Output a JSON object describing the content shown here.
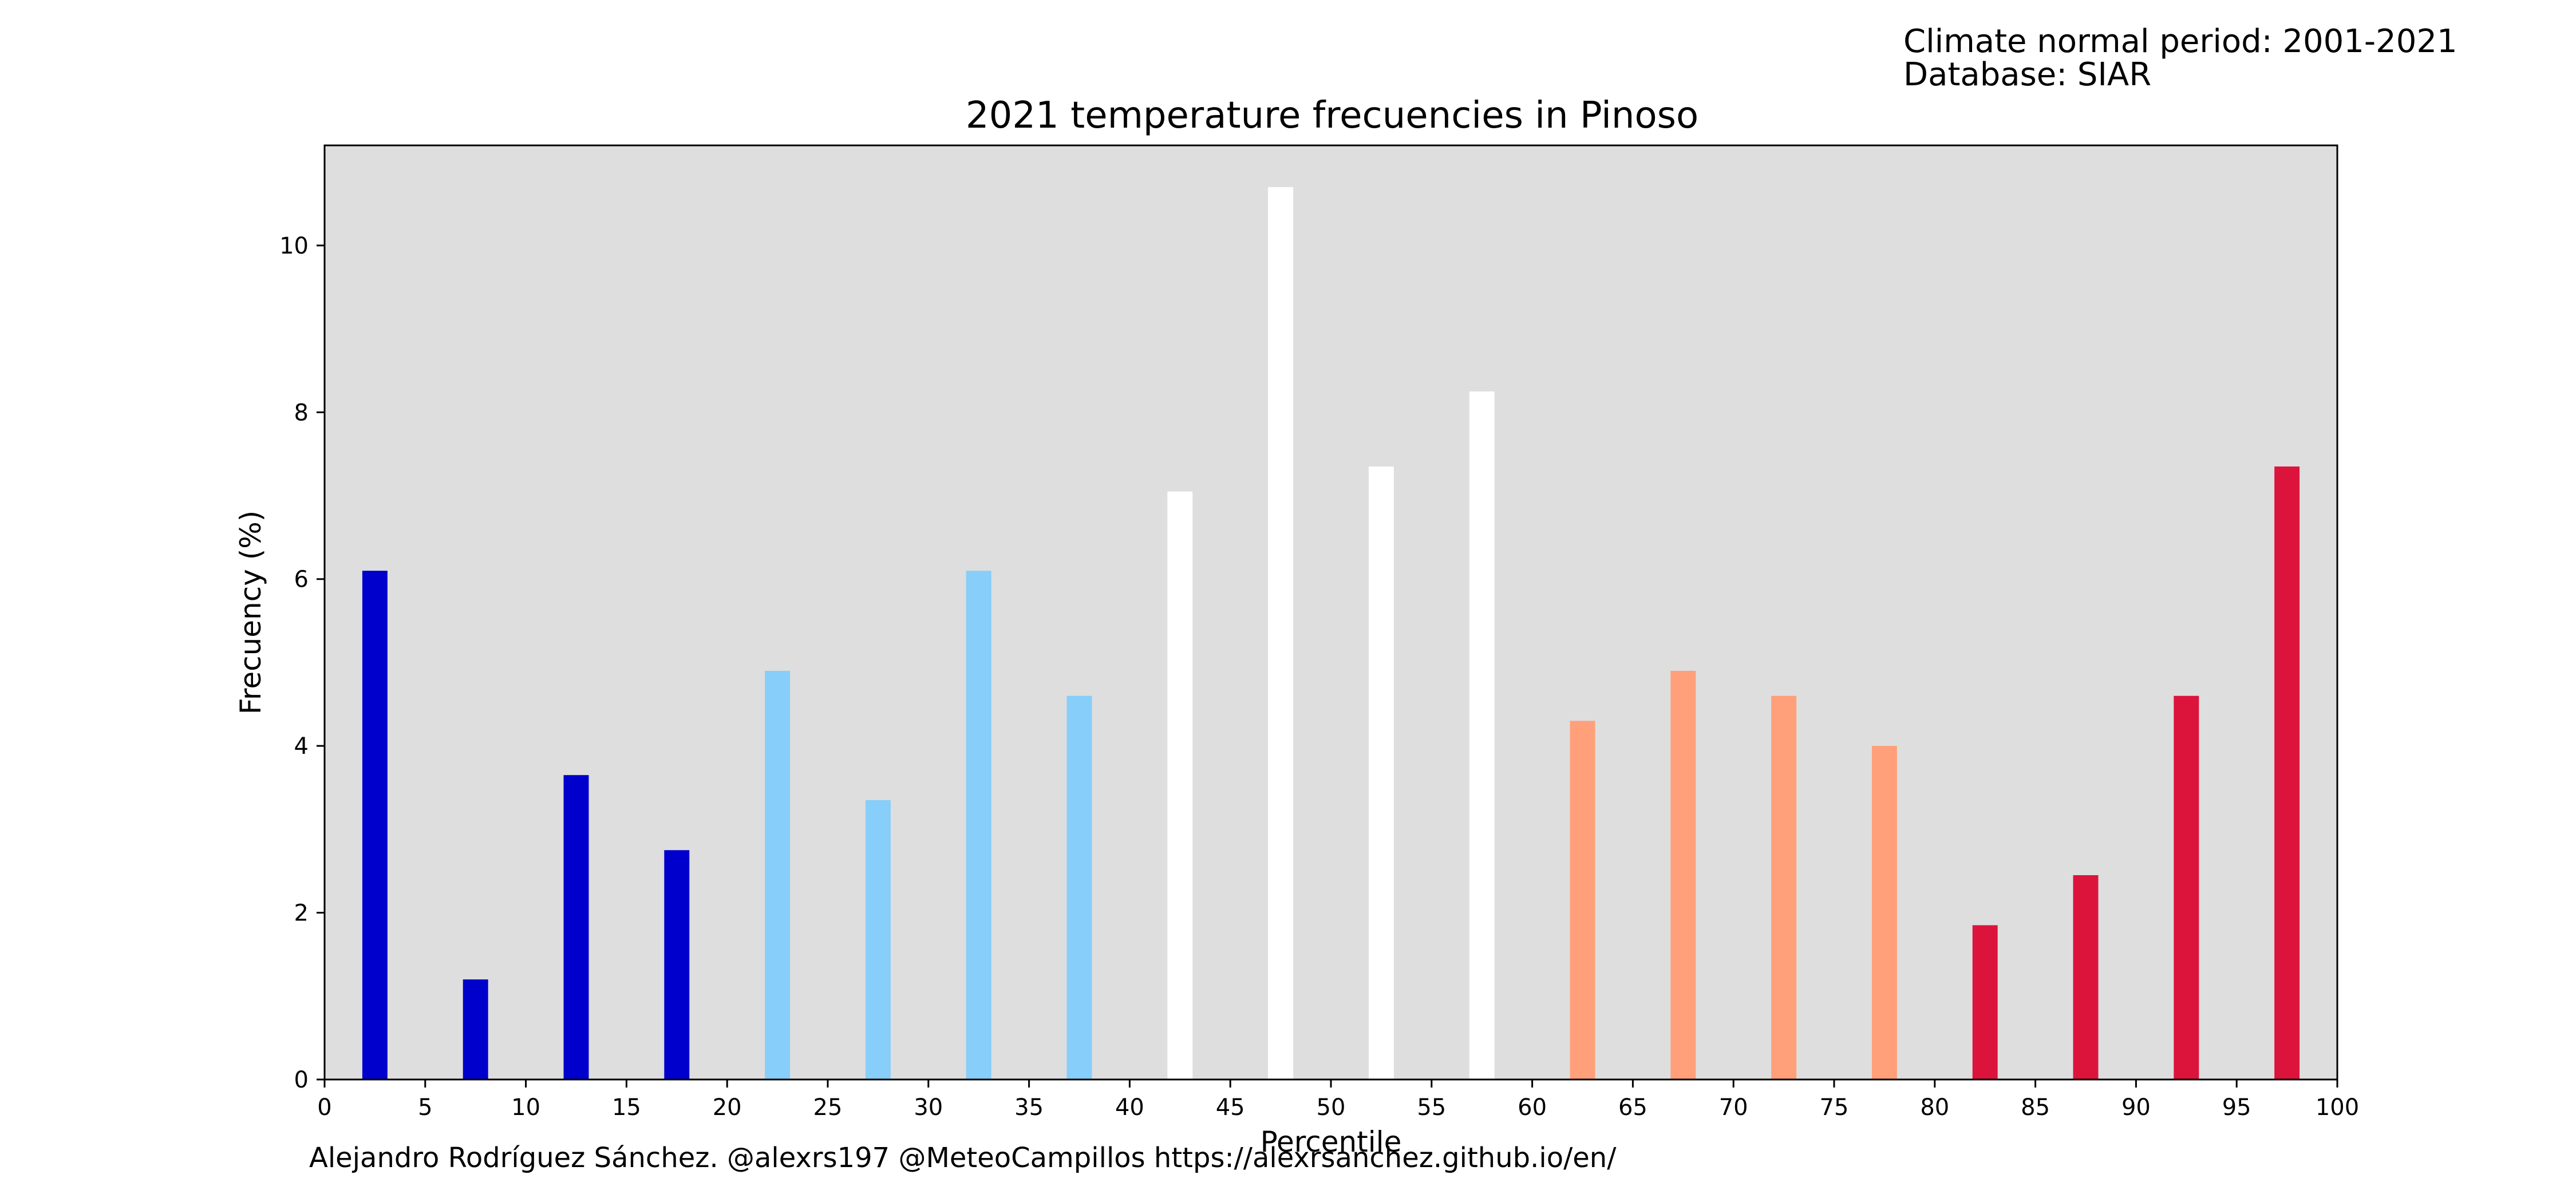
{
  "header": {
    "period_line": "Climate normal period: 2001-2021",
    "database_line": "Database: SIAR"
  },
  "footer": {
    "credit": "Alejandro Rodríguez Sánchez. @alexrs197 @MeteoCampillos   https://alexrsanchez.github.io/en/"
  },
  "chart_data": {
    "type": "bar",
    "title": "2021 temperature frecuencies in Pinoso",
    "xlabel": "Percentile",
    "ylabel": "Frecuency (%)",
    "xlim": [
      0,
      100
    ],
    "ylim": [
      0,
      11.2
    ],
    "x_ticks": [
      0,
      5,
      10,
      15,
      20,
      25,
      30,
      35,
      40,
      45,
      50,
      55,
      60,
      65,
      70,
      75,
      80,
      85,
      90,
      95,
      100
    ],
    "y_ticks": [
      0,
      2,
      4,
      6,
      8,
      10
    ],
    "grid": false,
    "plot_background": "#dedede",
    "bar_width": 1.25,
    "x": [
      2.5,
      7.5,
      12.5,
      17.5,
      22.5,
      27.5,
      32.5,
      37.5,
      42.5,
      47.5,
      52.5,
      57.5,
      62.5,
      67.5,
      72.5,
      77.5,
      82.5,
      87.5,
      92.5,
      97.5
    ],
    "values": [
      6.1,
      1.2,
      3.65,
      2.75,
      4.9,
      3.35,
      6.1,
      4.6,
      7.05,
      10.7,
      7.35,
      8.25,
      4.3,
      4.9,
      4.6,
      4.0,
      1.85,
      2.45,
      4.6,
      7.35
    ],
    "colors": [
      "#0000cd",
      "#0000cd",
      "#0000cd",
      "#0000cd",
      "#87cefa",
      "#87cefa",
      "#87cefa",
      "#87cefa",
      "#ffffff",
      "#ffffff",
      "#ffffff",
      "#ffffff",
      "#ffa07a",
      "#ffa07a",
      "#ffa07a",
      "#ffa07a",
      "#dc143c",
      "#dc143c",
      "#dc143c",
      "#dc143c"
    ]
  }
}
